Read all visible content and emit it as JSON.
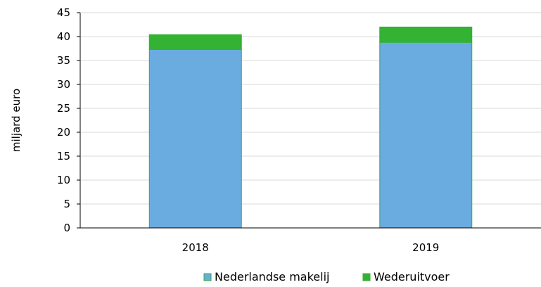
{
  "chart_data": {
    "type": "bar",
    "stacked": true,
    "categories": [
      "2018",
      "2019"
    ],
    "series": [
      {
        "name": "Nederlandse makelij",
        "values": [
          37.3,
          38.8
        ],
        "color": "#6aabe0"
      },
      {
        "name": "Wederuitvoer",
        "values": [
          3.1,
          3.2
        ],
        "color": "#33b233"
      }
    ],
    "ylabel": "miljard euro",
    "ylim": [
      0,
      45
    ],
    "yticks": [
      0,
      5,
      10,
      15,
      20,
      25,
      30,
      35,
      40,
      45
    ],
    "grid": true,
    "legend": "bottom"
  }
}
